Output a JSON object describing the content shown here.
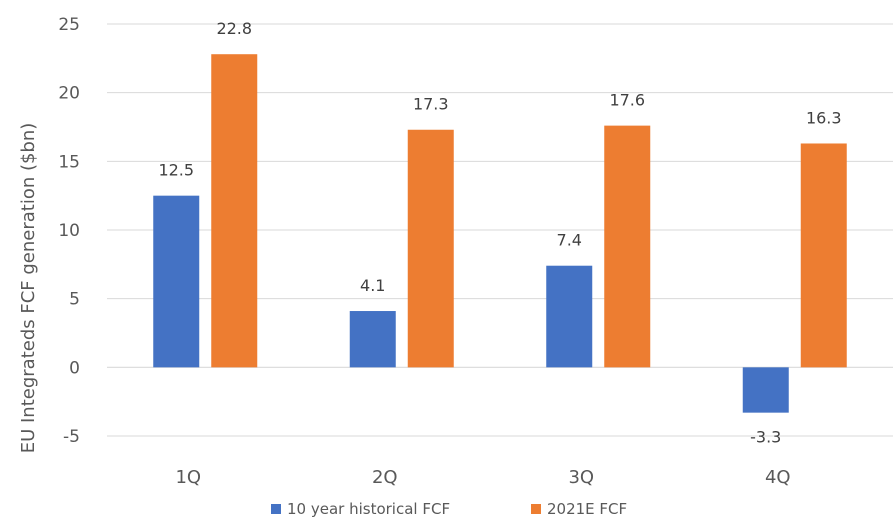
{
  "chart_data": {
    "type": "bar",
    "categories": [
      "1Q",
      "2Q",
      "3Q",
      "4Q"
    ],
    "series": [
      {
        "name": "10 year historical FCF",
        "color": "#4472C4",
        "values": [
          12.5,
          4.1,
          7.4,
          -3.3
        ]
      },
      {
        "name": "2021E FCF",
        "color": "#ED7D31",
        "values": [
          22.8,
          17.3,
          17.6,
          16.3
        ]
      }
    ],
    "data_labels": [
      [
        "12.5",
        "4.1",
        "7.4",
        "-3.3"
      ],
      [
        "22.8",
        "17.3",
        "17.6",
        "16.3"
      ]
    ],
    "title": "",
    "xlabel": "",
    "ylabel": "EU Integrateds FCF generation ($bn)",
    "ylim": [
      -5,
      25
    ],
    "yticks": [
      -5,
      0,
      5,
      10,
      15,
      20,
      25
    ],
    "ytick_labels": [
      "-5",
      "0",
      "5",
      "10",
      "15",
      "20",
      "25"
    ],
    "grid": true,
    "legend_position": "bottom"
  }
}
